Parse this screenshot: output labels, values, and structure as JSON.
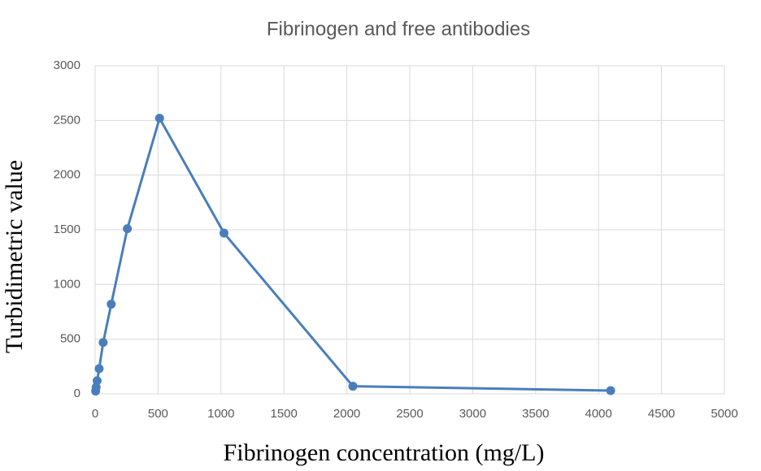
{
  "chart_data": {
    "type": "line",
    "title": "Fibrinogen and free antibodies",
    "x_label": "Fibrinogen concentration (mg/L)",
    "y_label": "Turbidimetric value",
    "x": [
      4,
      8,
      16,
      32,
      64,
      128,
      256,
      512,
      1024,
      2048,
      4096
    ],
    "series": [
      {
        "name": "Turbidimetric value",
        "color": "#4a7ebb",
        "values": [
          25,
          60,
          120,
          230,
          470,
          820,
          1510,
          2520,
          1470,
          70,
          30
        ]
      }
    ],
    "xlim": [
      0,
      5000
    ],
    "xticks": [
      0,
      500,
      1000,
      1500,
      2000,
      2500,
      3000,
      3500,
      4000,
      4500,
      5000
    ],
    "ylim": [
      0,
      3000
    ],
    "yticks": [
      0,
      500,
      1000,
      1500,
      2000,
      2500,
      3000
    ],
    "grid": true
  }
}
